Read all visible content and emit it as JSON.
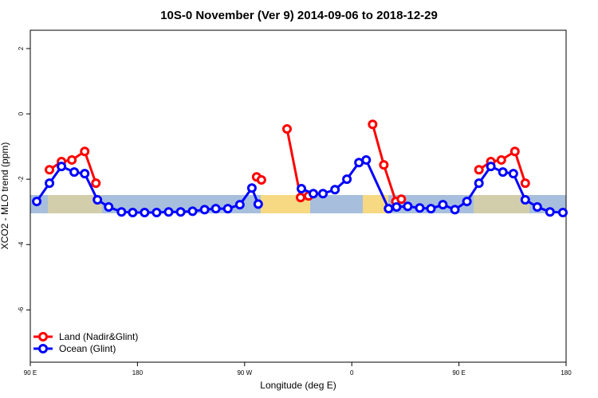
{
  "chart_data": {
    "type": "line",
    "title": "10S-0 November (Ver 9)   2014-09-06 to 2018-12-29",
    "xlabel": "Longitude (deg E)",
    "ylabel": "XCO2 - MLO trend (ppm)",
    "xlim": [
      90,
      540
    ],
    "xticks": [
      {
        "value": 90,
        "label": "90 E"
      },
      180,
      {
        "value": 270,
        "label": "90 W"
      },
      {
        "value": 360,
        "label": "0"
      },
      {
        "value": 450,
        "label": "90 E"
      },
      {
        "value": 540,
        "label": "180"
      }
    ],
    "ylim": [
      -7.6,
      2.56
    ],
    "yticks": [
      2,
      0,
      -2,
      -4,
      -6
    ],
    "legend": "bottom-left",
    "series": [
      {
        "name": "Land (Nadir&Glint)",
        "color": "#ff0000",
        "x": [
          106.1,
          116.2,
          124.9,
          135.7,
          145.1,
          null,
          280.1,
          284.1,
          null,
          305.6,
          317.0,
          323.7,
          null,
          377.5,
          386.9,
          397.0,
          null,
          401.6,
          null,
          466.8,
          476.8,
          485.6,
          497.0,
          505.7
        ],
        "values": [
          -1.71,
          -1.46,
          -1.41,
          -1.15,
          -2.12,
          null,
          -1.93,
          -2.02,
          null,
          -0.46,
          -2.56,
          -2.51,
          null,
          -0.32,
          -1.56,
          -2.68,
          null,
          -2.61,
          null,
          -1.71,
          -1.46,
          -1.41,
          -1.15,
          -2.12
        ]
      },
      {
        "name": "Ocean (Glint)",
        "color": "#0000ff",
        "x": [
          95.4,
          106.1,
          116.2,
          126.9,
          135.7,
          146.4,
          155.8,
          166.6,
          176.0,
          186.0,
          196.1,
          206.2,
          216.3,
          226.3,
          236.4,
          245.8,
          255.9,
          266.0,
          276.1,
          281.4,
          null,
          317.7,
          327.7,
          335.8,
          345.9,
          355.9,
          366.0,
          372.1,
          390.9,
          397.6,
          407.0,
          417.1,
          426.5,
          436.5,
          446.6,
          456.7,
          466.8,
          476.8,
          486.9,
          495.7,
          505.7,
          515.8,
          526.5,
          537.3
        ],
        "values": [
          -2.68,
          -2.12,
          -1.61,
          -1.78,
          -1.83,
          -2.63,
          -2.85,
          -3.0,
          -3.02,
          -3.02,
          -3.02,
          -3.0,
          -3.0,
          -2.98,
          -2.93,
          -2.9,
          -2.9,
          -2.78,
          -2.27,
          -2.76,
          null,
          -2.29,
          -2.44,
          -2.44,
          -2.32,
          -2.0,
          -1.49,
          -1.41,
          -2.9,
          -2.85,
          -2.83,
          -2.88,
          -2.9,
          -2.78,
          -2.93,
          -2.68,
          -2.12,
          -1.61,
          -1.78,
          -1.83,
          -2.63,
          -2.85,
          -3.0,
          -3.02
        ]
      }
    ]
  }
}
